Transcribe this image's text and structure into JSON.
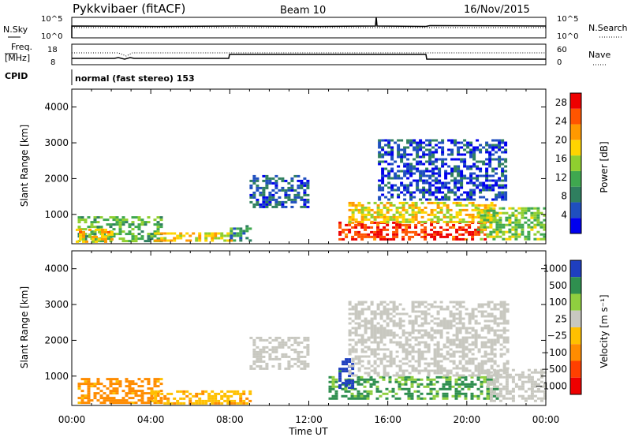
{
  "header": {
    "station": "Pykkvibaer (fitACF)",
    "beam": "Beam 10",
    "date": "16/Nov/2015"
  },
  "top_panels": {
    "nsky_label": "N.Sky",
    "nsearch_label": "N.Search",
    "freq_label_1": "Freq.",
    "freq_label_2": "[MHz]",
    "nave_label": "Nave",
    "cpid_label": "CPID",
    "cpid_text": "normal (fast stereo) 153",
    "noise_left_ticks": [
      "10^5",
      "10^0"
    ],
    "noise_right_ticks": [
      "10^5",
      "10^0"
    ],
    "freq_left_ticks": [
      "18",
      "8"
    ],
    "freq_right_ticks": [
      "60",
      "0"
    ]
  },
  "chart_data": [
    {
      "type": "heatmap",
      "name": "power",
      "xlabel": "",
      "ylabel": "Slant Range [km]",
      "x_ticks": [
        "00:00",
        "04:00",
        "08:00",
        "12:00",
        "16:00",
        "20:00",
        "00:00"
      ],
      "xlim": [
        0,
        24
      ],
      "ylim": [
        180,
        4500
      ],
      "y_ticks": [
        1000,
        2000,
        3000,
        4000
      ],
      "colorbar": {
        "label": "Power [dB]",
        "ticks": [
          4,
          8,
          12,
          16,
          20,
          24,
          28
        ],
        "range": [
          0,
          30
        ]
      },
      "regions": [
        {
          "t0": 0.3,
          "t1": 4.5,
          "r0": 250,
          "r1": 950,
          "v": 12
        },
        {
          "t0": 0.2,
          "t1": 2.0,
          "r0": 250,
          "r1": 600,
          "v": 20
        },
        {
          "t0": 4.0,
          "t1": 8.0,
          "r0": 250,
          "r1": 500,
          "v": 18
        },
        {
          "t0": 8.0,
          "t1": 9.0,
          "r0": 300,
          "r1": 700,
          "v": 10
        },
        {
          "t0": 9.0,
          "t1": 12.0,
          "r0": 1200,
          "r1": 2100,
          "v": 6
        },
        {
          "t0": 13.5,
          "t1": 21.0,
          "r0": 300,
          "r1": 800,
          "v": 27
        },
        {
          "t0": 14.0,
          "t1": 21.5,
          "r0": 800,
          "r1": 1350,
          "v": 18
        },
        {
          "t0": 20.5,
          "t1": 24.0,
          "r0": 300,
          "r1": 1200,
          "v": 14
        },
        {
          "t0": 15.5,
          "t1": 22.0,
          "r0": 1400,
          "r1": 3100,
          "v": 5
        }
      ]
    },
    {
      "type": "heatmap",
      "name": "velocity",
      "xlabel": "Time UT",
      "ylabel": "Slant Range [km]",
      "x_ticks": [
        "00:00",
        "04:00",
        "08:00",
        "12:00",
        "16:00",
        "20:00",
        "00:00"
      ],
      "xlim": [
        0,
        24
      ],
      "ylim": [
        180,
        4500
      ],
      "y_ticks": [
        1000,
        2000,
        3000,
        4000
      ],
      "colorbar": {
        "label": "Velocity [m s⁻¹]",
        "ticks": [
          "1000",
          "500",
          "100",
          "25",
          "−25",
          "−100",
          "−500",
          "−1000"
        ]
      },
      "regions": [
        {
          "t0": 0.3,
          "t1": 4.5,
          "r0": 250,
          "r1": 950,
          "v": -150
        },
        {
          "t0": 4.0,
          "t1": 9.0,
          "r0": 250,
          "r1": 600,
          "v": -80
        },
        {
          "t0": 9.0,
          "t1": 12.0,
          "r0": 1200,
          "r1": 2100,
          "v": 0
        },
        {
          "t0": 13.0,
          "t1": 21.5,
          "r0": 400,
          "r1": 1000,
          "v": 120
        },
        {
          "t0": 13.5,
          "t1": 14.2,
          "r0": 700,
          "r1": 1500,
          "v": 700
        },
        {
          "t0": 14.0,
          "t1": 22.0,
          "r0": 1000,
          "r1": 3100,
          "v": 0
        },
        {
          "t0": 21.0,
          "t1": 24.0,
          "r0": 300,
          "r1": 1200,
          "v": 0
        }
      ]
    }
  ]
}
